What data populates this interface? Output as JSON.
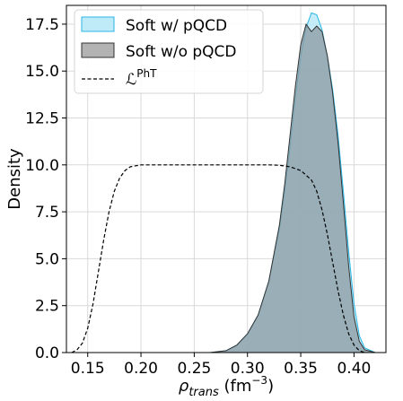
{
  "chart_data": {
    "type": "area",
    "xlabel": "ρ_trans (fm⁻³)",
    "xlabel_parts": {
      "symbol": "ρ",
      "subscript": "trans",
      "unit": " (fm",
      "exponent": "−3",
      "close": ")"
    },
    "ylabel": "Density",
    "xlim": [
      0.13,
      0.43
    ],
    "ylim": [
      0,
      18.5
    ],
    "x_ticks": [
      0.15,
      0.2,
      0.25,
      0.3,
      0.35,
      0.4
    ],
    "x_tick_labels": [
      "0.15",
      "0.20",
      "0.25",
      "0.30",
      "0.35",
      "0.40"
    ],
    "y_ticks": [
      0.0,
      2.5,
      5.0,
      7.5,
      10.0,
      12.5,
      15.0,
      17.5
    ],
    "y_tick_labels": [
      "0.0",
      "2.5",
      "5.0",
      "7.5",
      "10.0",
      "12.5",
      "15.0",
      "17.5"
    ],
    "grid": true,
    "legend_position": "top-left",
    "series": [
      {
        "name": "Soft w/ pQCD",
        "style": "filled-area",
        "fill": "#bfeaf8",
        "stroke": "#27b6e6",
        "x": [
          0.265,
          0.28,
          0.29,
          0.3,
          0.31,
          0.32,
          0.33,
          0.335,
          0.34,
          0.345,
          0.35,
          0.355,
          0.36,
          0.365,
          0.37,
          0.375,
          0.38,
          0.385,
          0.39,
          0.395,
          0.4,
          0.405,
          0.41,
          0.42
        ],
        "y": [
          0.0,
          0.1,
          0.4,
          1.0,
          2.0,
          3.8,
          6.6,
          8.6,
          11.0,
          13.6,
          15.8,
          17.3,
          18.1,
          18.0,
          17.2,
          15.8,
          14.0,
          11.6,
          8.6,
          5.4,
          2.6,
          0.9,
          0.25,
          0.0
        ]
      },
      {
        "name": "Soft w/o pQCD",
        "style": "filled-area",
        "fill": "#8a9aa0",
        "stroke": "#333333",
        "x": [
          0.265,
          0.28,
          0.29,
          0.3,
          0.31,
          0.32,
          0.33,
          0.335,
          0.34,
          0.345,
          0.35,
          0.355,
          0.36,
          0.365,
          0.37,
          0.375,
          0.38,
          0.385,
          0.39,
          0.395,
          0.4,
          0.405,
          0.41,
          0.42
        ],
        "y": [
          0.0,
          0.1,
          0.4,
          1.0,
          2.0,
          3.8,
          6.8,
          9.0,
          11.6,
          14.2,
          16.4,
          17.5,
          17.1,
          17.4,
          17.1,
          15.8,
          13.8,
          11.2,
          8.0,
          4.6,
          1.9,
          0.6,
          0.15,
          0.0
        ]
      },
      {
        "name": "𝓛^PhT",
        "legend_label": "ℒ",
        "legend_superscript": "PhT",
        "style": "dashed-line",
        "stroke": "#000000",
        "x": [
          0.135,
          0.14,
          0.145,
          0.15,
          0.155,
          0.16,
          0.165,
          0.17,
          0.175,
          0.18,
          0.185,
          0.19,
          0.2,
          0.21,
          0.22,
          0.25,
          0.3,
          0.32,
          0.33,
          0.34,
          0.35,
          0.36,
          0.365,
          0.37,
          0.375,
          0.38,
          0.385,
          0.39,
          0.395,
          0.4,
          0.405,
          0.41
        ],
        "y": [
          0.0,
          0.15,
          0.5,
          1.3,
          2.6,
          4.3,
          6.0,
          7.5,
          8.6,
          9.3,
          9.7,
          9.9,
          10.0,
          10.0,
          10.0,
          10.0,
          10.0,
          10.0,
          9.98,
          9.9,
          9.7,
          9.2,
          8.6,
          7.6,
          6.3,
          4.8,
          3.3,
          2.0,
          1.0,
          0.4,
          0.1,
          0.0
        ]
      }
    ],
    "colors": {
      "grid": "#d9d9d9",
      "axis": "#000000",
      "legend_border": "#d6d6d6"
    }
  }
}
